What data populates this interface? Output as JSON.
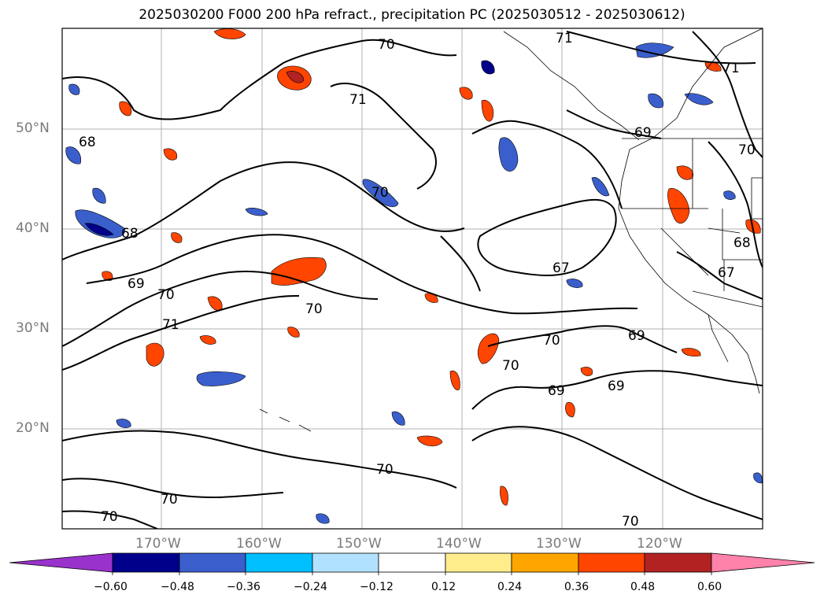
{
  "title": "2025030200 F000 200 hPa refract., precipitation PC (2025030512 - 2025030612)",
  "lat_labels": [
    "50°N",
    "40°N",
    "30°N",
    "20°N"
  ],
  "lon_labels": [
    "170°W",
    "160°W",
    "150°W",
    "140°W",
    "130°W",
    "120°W"
  ],
  "colorbar": {
    "ticks": [
      "−0.60",
      "−0.48",
      "−0.36",
      "−0.24",
      "−0.12",
      "0.12",
      "0.24",
      "0.36",
      "0.48",
      "0.60"
    ],
    "colors": [
      "#9932cc",
      "#00008b",
      "#3a5fcd",
      "#00bfff",
      "#b0e2ff",
      "#ffffff",
      "#ffec8b",
      "#ffa500",
      "#ff4500",
      "#b22222",
      "#ff82ab"
    ]
  },
  "contour_labels": [
    "70",
    "71",
    "71",
    "69",
    "68",
    "70",
    "68",
    "70",
    "71",
    "70",
    "69",
    "70",
    "70",
    "69",
    "67",
    "67",
    "68",
    "69",
    "70",
    "70",
    "69",
    "70",
    "70",
    "70",
    "71"
  ]
}
